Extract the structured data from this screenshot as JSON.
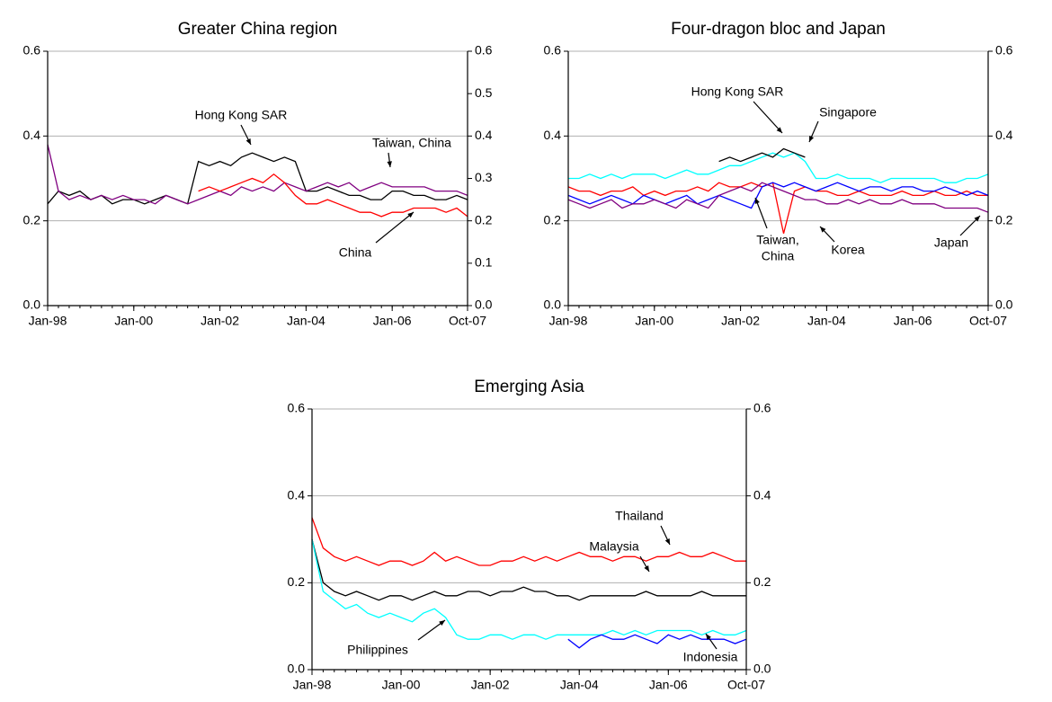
{
  "chart_data": [
    {
      "type": "line",
      "title": "Greater China region",
      "x": [
        "Jan-98",
        "Apr-98",
        "Jul-98",
        "Oct-98",
        "Jan-99",
        "Apr-99",
        "Jul-99",
        "Oct-99",
        "Jan-00",
        "Apr-00",
        "Jul-00",
        "Oct-00",
        "Jan-01",
        "Apr-01",
        "Jul-01",
        "Oct-01",
        "Jan-02",
        "Apr-02",
        "Jul-02",
        "Oct-02",
        "Jan-03",
        "Apr-03",
        "Jul-03",
        "Oct-03",
        "Jan-04",
        "Apr-04",
        "Jul-04",
        "Oct-04",
        "Jan-05",
        "Apr-05",
        "Jul-05",
        "Oct-05",
        "Jan-06",
        "Apr-06",
        "Jul-06",
        "Oct-06",
        "Jan-07",
        "Apr-07",
        "Jul-07",
        "Oct-07"
      ],
      "xticks": [
        "Jan-98",
        "Jan-00",
        "Jan-02",
        "Jan-04",
        "Jan-06",
        "Oct-07"
      ],
      "ylim": [
        0,
        0.6
      ],
      "yticks": [
        {
          "value": 0,
          "label": "0.0"
        },
        0.2,
        0.4,
        0.6
      ],
      "y2lim": [
        0,
        0.6
      ],
      "y2ticks": [
        {
          "value": 0,
          "label": "0.0"
        },
        0.1,
        0.2,
        0.3,
        0.4,
        0.5,
        0.6
      ],
      "grid": true,
      "series": [
        {
          "name": "Hong Kong SAR",
          "color": "#000000",
          "values": [
            0.24,
            0.27,
            0.26,
            0.27,
            0.25,
            0.26,
            0.24,
            0.25,
            0.25,
            0.24,
            0.25,
            0.26,
            0.25,
            0.24,
            0.34,
            0.33,
            0.34,
            0.33,
            0.35,
            0.36,
            0.35,
            0.34,
            0.35,
            0.34,
            0.27,
            0.27,
            0.28,
            0.27,
            0.26,
            0.26,
            0.25,
            0.25,
            0.27,
            0.27,
            0.26,
            0.26,
            0.25,
            0.25,
            0.26,
            0.25
          ]
        },
        {
          "name": "Taiwan, China",
          "color": "#800080",
          "values": [
            0.38,
            0.27,
            0.25,
            0.26,
            0.25,
            0.26,
            0.25,
            0.26,
            0.25,
            0.25,
            0.24,
            0.26,
            0.25,
            0.24,
            0.25,
            0.26,
            0.27,
            0.26,
            0.28,
            0.27,
            0.28,
            0.27,
            0.29,
            0.28,
            0.27,
            0.28,
            0.29,
            0.28,
            0.29,
            0.27,
            0.28,
            0.29,
            0.28,
            0.28,
            0.28,
            0.28,
            0.27,
            0.27,
            0.27,
            0.26
          ]
        },
        {
          "name": "China",
          "color": "#ff0000",
          "values": [
            null,
            null,
            null,
            null,
            null,
            null,
            null,
            null,
            null,
            null,
            null,
            null,
            null,
            null,
            0.27,
            0.28,
            0.27,
            0.28,
            0.29,
            0.3,
            0.29,
            0.31,
            0.29,
            0.26,
            0.24,
            0.24,
            0.25,
            0.24,
            0.23,
            0.22,
            0.22,
            0.21,
            0.22,
            0.22,
            0.23,
            0.23,
            0.23,
            0.22,
            0.23,
            0.21
          ]
        }
      ],
      "annotations": [
        {
          "lines": [
            "Hong Kong SAR"
          ]
        },
        {
          "lines": [
            "Taiwan, China"
          ]
        },
        {
          "lines": [
            "China"
          ]
        }
      ]
    },
    {
      "type": "line",
      "title": "Four-dragon bloc and Japan",
      "x": [
        "Jan-98",
        "Apr-98",
        "Jul-98",
        "Oct-98",
        "Jan-99",
        "Apr-99",
        "Jul-99",
        "Oct-99",
        "Jan-00",
        "Apr-00",
        "Jul-00",
        "Oct-00",
        "Jan-01",
        "Apr-01",
        "Jul-01",
        "Oct-01",
        "Jan-02",
        "Apr-02",
        "Jul-02",
        "Oct-02",
        "Jan-03",
        "Apr-03",
        "Jul-03",
        "Oct-03",
        "Jan-04",
        "Apr-04",
        "Jul-04",
        "Oct-04",
        "Jan-05",
        "Apr-05",
        "Jul-05",
        "Oct-05",
        "Jan-06",
        "Apr-06",
        "Jul-06",
        "Oct-06",
        "Jan-07",
        "Apr-07",
        "Jul-07",
        "Oct-07"
      ],
      "xticks": [
        "Jan-98",
        "Jan-00",
        "Jan-02",
        "Jan-04",
        "Jan-06",
        "Oct-07"
      ],
      "ylim": [
        0,
        0.6
      ],
      "yticks": [
        {
          "value": 0,
          "label": "0.0"
        },
        0.2,
        0.4,
        0.6
      ],
      "y2lim": [
        0,
        0.6
      ],
      "y2ticks": [
        {
          "value": 0,
          "label": "0.0"
        },
        0.2,
        0.4,
        0.6
      ],
      "grid": true,
      "series": [
        {
          "name": "Singapore",
          "color": "#00ffff",
          "values": [
            0.3,
            0.3,
            0.31,
            0.3,
            0.31,
            0.3,
            0.31,
            0.31,
            0.31,
            0.3,
            0.31,
            0.32,
            0.31,
            0.31,
            0.32,
            0.33,
            0.33,
            0.34,
            0.35,
            0.36,
            0.35,
            0.36,
            0.34,
            0.3,
            0.3,
            0.31,
            0.3,
            0.3,
            0.3,
            0.29,
            0.3,
            0.3,
            0.3,
            0.3,
            0.3,
            0.29,
            0.29,
            0.3,
            0.3,
            0.31
          ]
        },
        {
          "name": "Hong Kong SAR",
          "color": "#000000",
          "values": [
            null,
            null,
            null,
            null,
            null,
            null,
            null,
            null,
            null,
            null,
            null,
            null,
            null,
            null,
            0.34,
            0.35,
            0.34,
            0.35,
            0.36,
            0.35,
            0.37,
            0.36,
            0.35,
            null,
            null,
            null,
            null,
            null,
            null,
            null,
            null,
            null,
            null,
            null,
            null,
            null,
            null,
            null,
            null,
            null
          ]
        },
        {
          "name": "Korea",
          "color": "#ff0000",
          "values": [
            0.28,
            0.27,
            0.27,
            0.26,
            0.27,
            0.27,
            0.28,
            0.26,
            0.27,
            0.26,
            0.27,
            0.27,
            0.28,
            0.27,
            0.29,
            0.28,
            0.28,
            0.29,
            0.28,
            0.29,
            0.17,
            0.27,
            0.28,
            0.27,
            0.27,
            0.26,
            0.26,
            0.27,
            0.26,
            0.26,
            0.26,
            0.27,
            0.26,
            0.26,
            0.27,
            0.26,
            0.26,
            0.27,
            0.26,
            0.26
          ]
        },
        {
          "name": "Taiwan, China",
          "color": "#0000ff",
          "values": [
            0.26,
            0.25,
            0.24,
            0.25,
            0.26,
            0.25,
            0.24,
            0.26,
            0.25,
            0.24,
            0.25,
            0.26,
            0.24,
            0.25,
            0.26,
            0.25,
            0.24,
            0.23,
            0.28,
            0.29,
            0.28,
            0.29,
            0.28,
            0.27,
            0.28,
            0.29,
            0.28,
            0.27,
            0.28,
            0.28,
            0.27,
            0.28,
            0.28,
            0.27,
            0.27,
            0.28,
            0.27,
            0.26,
            0.27,
            0.26
          ]
        },
        {
          "name": "Japan",
          "color": "#800080",
          "values": [
            0.25,
            0.24,
            0.23,
            0.24,
            0.25,
            0.23,
            0.24,
            0.24,
            0.25,
            0.24,
            0.23,
            0.25,
            0.24,
            0.23,
            0.26,
            0.27,
            0.28,
            0.27,
            0.29,
            0.28,
            0.27,
            0.26,
            0.25,
            0.25,
            0.24,
            0.24,
            0.25,
            0.24,
            0.25,
            0.24,
            0.24,
            0.25,
            0.24,
            0.24,
            0.24,
            0.23,
            0.23,
            0.23,
            0.23,
            0.22
          ]
        }
      ],
      "annotations": [
        {
          "lines": [
            "Hong Kong SAR"
          ]
        },
        {
          "lines": [
            "Singapore"
          ]
        },
        {
          "lines": [
            "Taiwan,",
            "China"
          ]
        },
        {
          "lines": [
            "Korea"
          ]
        },
        {
          "lines": [
            "Japan"
          ]
        }
      ]
    },
    {
      "type": "line",
      "title": "Emerging Asia",
      "x": [
        "Jan-98",
        "Apr-98",
        "Jul-98",
        "Oct-98",
        "Jan-99",
        "Apr-99",
        "Jul-99",
        "Oct-99",
        "Jan-00",
        "Apr-00",
        "Jul-00",
        "Oct-00",
        "Jan-01",
        "Apr-01",
        "Jul-01",
        "Oct-01",
        "Jan-02",
        "Apr-02",
        "Jul-02",
        "Oct-02",
        "Jan-03",
        "Apr-03",
        "Jul-03",
        "Oct-03",
        "Jan-04",
        "Apr-04",
        "Jul-04",
        "Oct-04",
        "Jan-05",
        "Apr-05",
        "Jul-05",
        "Oct-05",
        "Jan-06",
        "Apr-06",
        "Jul-06",
        "Oct-06",
        "Jan-07",
        "Apr-07",
        "Jul-07",
        "Oct-07"
      ],
      "xticks": [
        "Jan-98",
        "Jan-00",
        "Jan-02",
        "Jan-04",
        "Jan-06",
        "Oct-07"
      ],
      "ylim": [
        0,
        0.6
      ],
      "yticks": [
        {
          "value": 0,
          "label": "0.0"
        },
        0.2,
        0.4,
        0.6
      ],
      "y2lim": [
        0,
        0.6
      ],
      "y2ticks": [
        {
          "value": 0,
          "label": "0.0"
        },
        0.2,
        0.4,
        0.6
      ],
      "grid": true,
      "series": [
        {
          "name": "Thailand",
          "color": "#ff0000",
          "values": [
            0.35,
            0.28,
            0.26,
            0.25,
            0.26,
            0.25,
            0.24,
            0.25,
            0.25,
            0.24,
            0.25,
            0.27,
            0.25,
            0.26,
            0.25,
            0.24,
            0.24,
            0.25,
            0.25,
            0.26,
            0.25,
            0.26,
            0.25,
            0.26,
            0.27,
            0.26,
            0.26,
            0.25,
            0.26,
            0.26,
            0.25,
            0.26,
            0.26,
            0.27,
            0.26,
            0.26,
            0.27,
            0.26,
            0.25,
            0.25
          ]
        },
        {
          "name": "Malaysia",
          "color": "#000000",
          "values": [
            0.3,
            0.2,
            0.18,
            0.17,
            0.18,
            0.17,
            0.16,
            0.17,
            0.17,
            0.16,
            0.17,
            0.18,
            0.17,
            0.17,
            0.18,
            0.18,
            0.17,
            0.18,
            0.18,
            0.19,
            0.18,
            0.18,
            0.17,
            0.17,
            0.16,
            0.17,
            0.17,
            0.17,
            0.17,
            0.17,
            0.18,
            0.17,
            0.17,
            0.17,
            0.17,
            0.18,
            0.17,
            0.17,
            0.17,
            0.17
          ]
        },
        {
          "name": "Philippines",
          "color": "#00ffff",
          "values": [
            0.3,
            0.18,
            0.16,
            0.14,
            0.15,
            0.13,
            0.12,
            0.13,
            0.12,
            0.11,
            0.13,
            0.14,
            0.12,
            0.08,
            0.07,
            0.07,
            0.08,
            0.08,
            0.07,
            0.08,
            0.08,
            0.07,
            0.08,
            0.08,
            0.08,
            0.08,
            0.08,
            0.09,
            0.08,
            0.09,
            0.08,
            0.09,
            0.09,
            0.09,
            0.09,
            0.08,
            0.09,
            0.08,
            0.08,
            0.09
          ]
        },
        {
          "name": "Indonesia",
          "color": "#0000ff",
          "values": [
            null,
            null,
            null,
            null,
            null,
            null,
            null,
            null,
            null,
            null,
            null,
            null,
            null,
            null,
            null,
            null,
            null,
            null,
            null,
            null,
            null,
            null,
            null,
            0.07,
            0.05,
            0.07,
            0.08,
            0.07,
            0.07,
            0.08,
            0.07,
            0.06,
            0.08,
            0.07,
            0.08,
            0.07,
            0.07,
            0.07,
            0.06,
            0.07
          ]
        }
      ],
      "annotations": [
        {
          "lines": [
            "Thailand"
          ]
        },
        {
          "lines": [
            "Malaysia"
          ]
        },
        {
          "lines": [
            "Philippines"
          ]
        },
        {
          "lines": [
            "Indonesia"
          ]
        }
      ]
    }
  ]
}
